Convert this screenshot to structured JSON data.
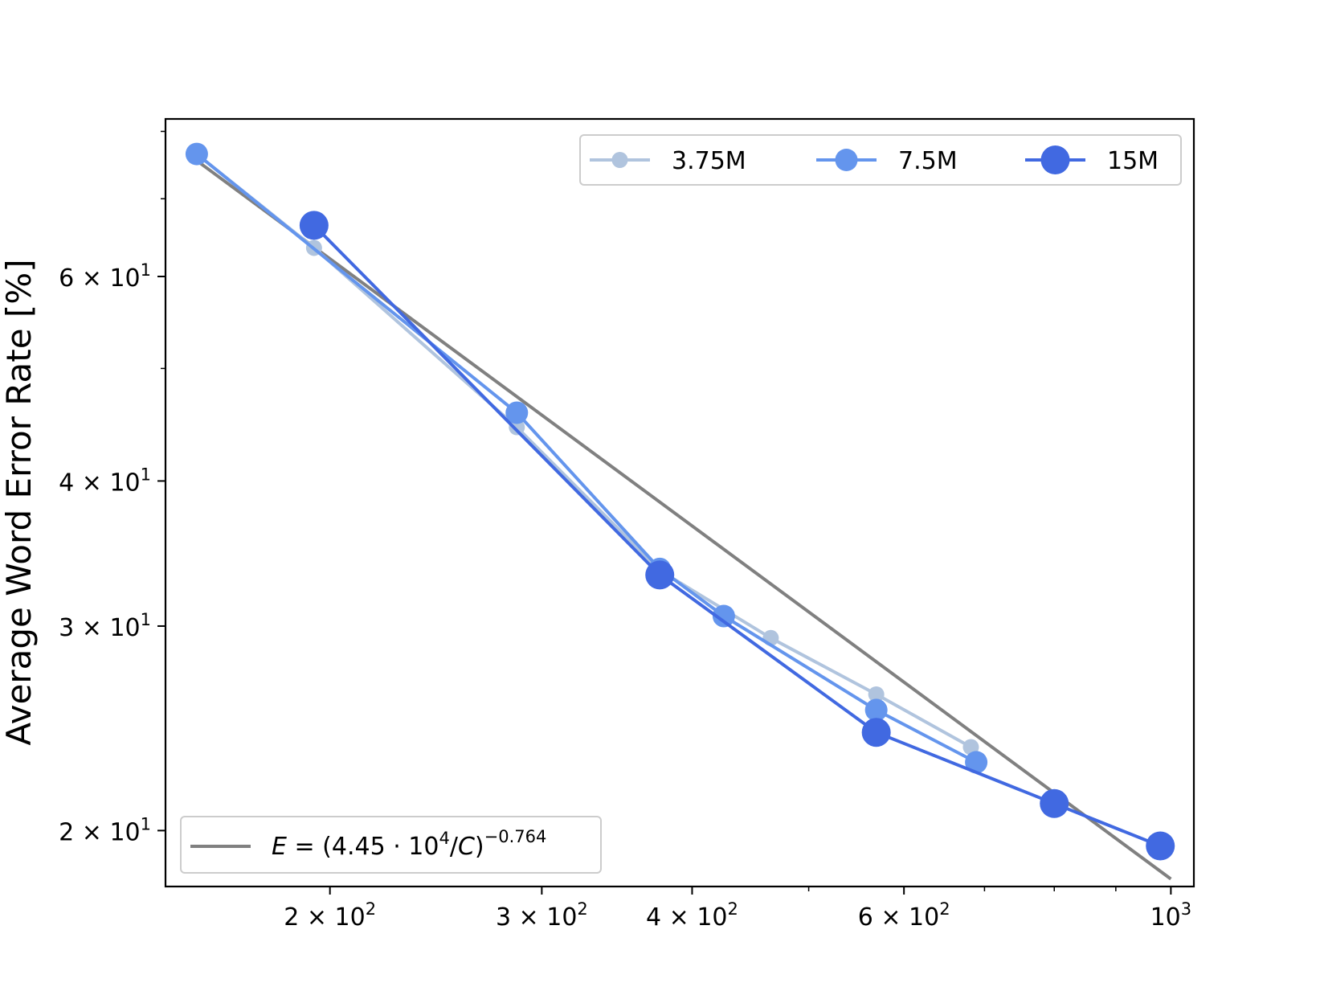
{
  "chart_data": {
    "type": "line",
    "title": "",
    "xlabel": "",
    "ylabel": "Average Word Error Rate [%]",
    "x_scale": "log",
    "y_scale": "log",
    "xlim": [
      146,
      1045
    ],
    "ylim": [
      17.9,
      82
    ],
    "x_ticks": [
      {
        "value": 200,
        "mantissa": "2",
        "base": "10",
        "exp": "2"
      },
      {
        "value": 300,
        "mantissa": "3",
        "base": "10",
        "exp": "2"
      },
      {
        "value": 400,
        "mantissa": "4",
        "base": "10",
        "exp": "2"
      },
      {
        "value": 600,
        "mantissa": "6",
        "base": "10",
        "exp": "2"
      },
      {
        "value": 1000,
        "mantissa": "",
        "base": "10",
        "exp": "3"
      }
    ],
    "y_ticks": [
      {
        "value": 20,
        "mantissa": "2",
        "base": "10",
        "exp": "1"
      },
      {
        "value": 30,
        "mantissa": "3",
        "base": "10",
        "exp": "1"
      },
      {
        "value": 40,
        "mantissa": "4",
        "base": "10",
        "exp": "1"
      },
      {
        "value": 60,
        "mantissa": "6",
        "base": "10",
        "exp": "1"
      }
    ],
    "x_minor_ticks": [
      500,
      700,
      800,
      900
    ],
    "y_minor_ticks": [
      50,
      70,
      80
    ],
    "series": [
      {
        "name": "3.75M",
        "color": "#b0c4de",
        "marker_size": 10,
        "x": [
          155,
          194,
          286,
          376,
          465,
          569,
          682
        ],
        "y": [
          76.5,
          63.5,
          44.5,
          33.5,
          29.3,
          26.2,
          23.6
        ]
      },
      {
        "name": "7.5M",
        "color": "#6495ed",
        "marker_size": 14,
        "x": [
          155,
          286,
          376,
          425,
          569,
          689
        ],
        "y": [
          76.5,
          45.8,
          33.6,
          30.6,
          25.4,
          22.9
        ]
      },
      {
        "name": "15M",
        "color": "#4169e1",
        "marker_size": 18,
        "x": [
          194,
          376,
          569,
          800,
          980
        ],
        "y": [
          66.4,
          33.2,
          24.3,
          21.1,
          19.4
        ]
      }
    ],
    "fit": {
      "color": "#808080",
      "x_range": [
        155,
        1000
      ],
      "A": 44500,
      "alpha": 0.764,
      "label": {
        "E": "E",
        "eq": " = (4.45 · 10",
        "exp1": "4",
        "mid": "/",
        "C": "C",
        "close": ")",
        "exp2": "−0.764"
      }
    },
    "legend_position": "upper right",
    "fit_legend_position": "lower left",
    "grid": false
  }
}
